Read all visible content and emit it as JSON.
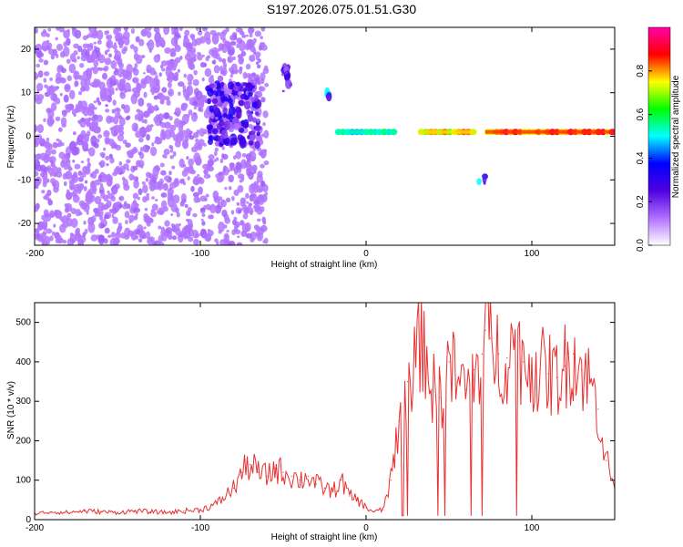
{
  "figure_title": "S197.2026.075.01.51.G30",
  "chart_data": [
    {
      "type": "heatmap",
      "xlabel": "Height of straight line (km)",
      "ylabel": "Frequency (Hz)",
      "xlim": [
        -200,
        150
      ],
      "ylim": [
        -25,
        25
      ],
      "xticks": [
        -200,
        -100,
        0,
        100
      ],
      "yticks": [
        -20,
        -10,
        0,
        10,
        20
      ],
      "colorbar": {
        "label": "Normalized spectral amplitude",
        "range": [
          0.0,
          1.0
        ],
        "ticks": [
          0.0,
          0.2,
          0.4,
          0.6,
          0.8
        ],
        "tick_labels": [
          "0.0",
          "0.2",
          "0.4",
          "0.6",
          "0.8"
        ],
        "colors": [
          "#ffffff",
          "#b070ff",
          "#5000e0",
          "#0000ff",
          "#00ffff",
          "#00ff00",
          "#ffff00",
          "#ff0000",
          "#ff00aa"
        ]
      },
      "features": [
        {
          "desc": "scattered low-amplitude noise",
          "x_range": [
            -200,
            -60
          ],
          "y_range": [
            -25,
            25
          ],
          "amplitude": 0.15
        },
        {
          "desc": "blob cluster",
          "x_range": [
            -95,
            -65
          ],
          "y_range": [
            -2,
            12
          ],
          "amplitude": 0.35
        },
        {
          "desc": "blob",
          "x_range": [
            -50,
            -45
          ],
          "y_range": [
            10,
            16
          ],
          "amplitude": 0.3
        },
        {
          "desc": "blob",
          "x_range": [
            -24,
            -22
          ],
          "y_range": [
            9,
            11
          ],
          "amplitude": 0.5
        },
        {
          "desc": "horizontal line near 1 Hz",
          "x_range": [
            -18,
            18
          ],
          "y": 1,
          "amplitude": 0.6
        },
        {
          "desc": "horizontal line near 1 Hz",
          "x_range": [
            32,
            66
          ],
          "y": 1,
          "amplitude": 0.85
        },
        {
          "desc": "horizontal line near 1 Hz",
          "x_range": [
            72,
            150
          ],
          "y": 1,
          "amplitude": 0.95
        },
        {
          "desc": "blob",
          "x_range": [
            67,
            72
          ],
          "y_range": [
            -11,
            -9
          ],
          "amplitude": 0.55
        }
      ]
    },
    {
      "type": "line",
      "xlabel": "Height of straight line (km)",
      "ylabel": "SNR (10 * v/v)",
      "xlim": [
        -200,
        150
      ],
      "ylim": [
        0,
        550
      ],
      "xticks": [
        -200,
        -100,
        0,
        100
      ],
      "yticks": [
        0,
        100,
        200,
        300,
        400,
        500
      ],
      "series": [
        {
          "name": "SNR",
          "color": "#e83030",
          "x": [
            -200,
            -190,
            -180,
            -170,
            -160,
            -150,
            -140,
            -130,
            -120,
            -110,
            -100,
            -90,
            -80,
            -75,
            -70,
            -65,
            -60,
            -55,
            -50,
            -45,
            -40,
            -35,
            -30,
            -25,
            -20,
            -15,
            -10,
            -5,
            0,
            5,
            10,
            15,
            18,
            20,
            25,
            30,
            35,
            40,
            45,
            50,
            55,
            60,
            65,
            70,
            72,
            75,
            80,
            85,
            90,
            95,
            100,
            105,
            110,
            115,
            120,
            125,
            130,
            135,
            140,
            145,
            150
          ],
          "y": [
            15,
            20,
            18,
            22,
            20,
            18,
            22,
            20,
            18,
            22,
            25,
            40,
            80,
            120,
            140,
            120,
            110,
            130,
            120,
            110,
            100,
            110,
            90,
            80,
            70,
            100,
            60,
            50,
            30,
            20,
            25,
            100,
            200,
            250,
            350,
            420,
            450,
            330,
            310,
            400,
            350,
            330,
            380,
            420,
            480,
            460,
            420,
            410,
            440,
            400,
            390,
            380,
            370,
            360,
            390,
            420,
            380,
            350,
            280,
            150,
            80
          ]
        }
      ]
    }
  ]
}
